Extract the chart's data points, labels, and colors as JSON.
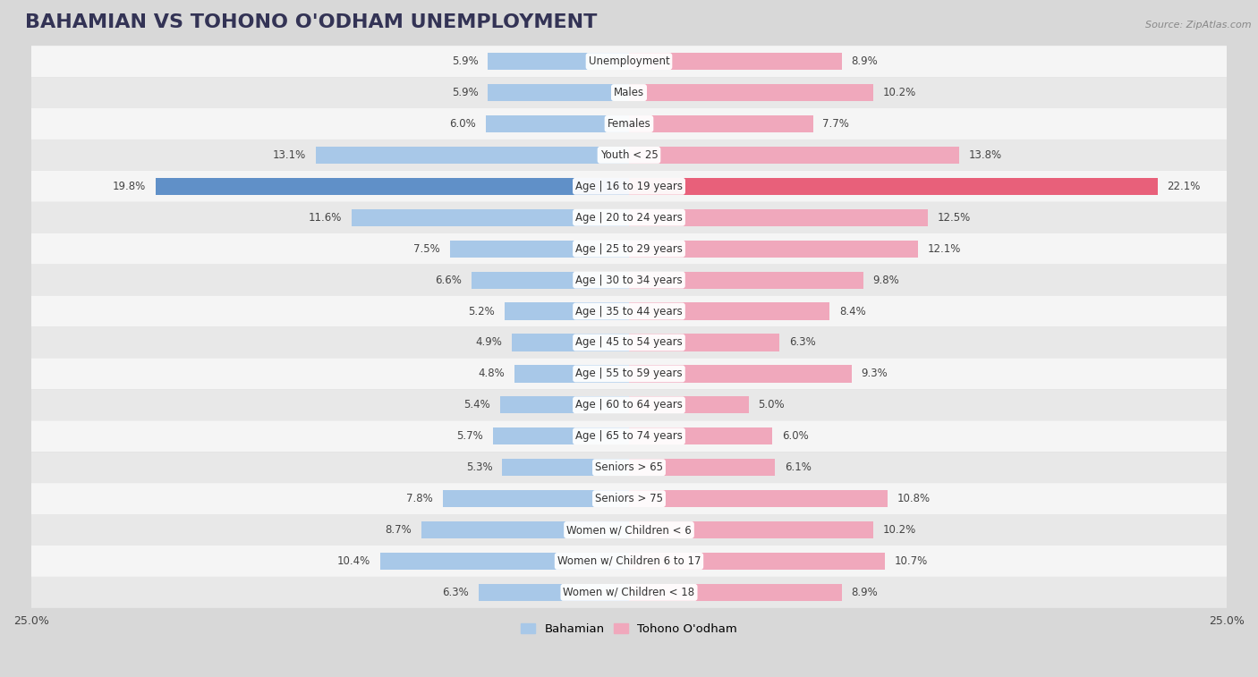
{
  "title": "BAHAMIAN VS TOHONO O'ODHAM UNEMPLOYMENT",
  "source": "Source: ZipAtlas.com",
  "categories": [
    "Unemployment",
    "Males",
    "Females",
    "Youth < 25",
    "Age | 16 to 19 years",
    "Age | 20 to 24 years",
    "Age | 25 to 29 years",
    "Age | 30 to 34 years",
    "Age | 35 to 44 years",
    "Age | 45 to 54 years",
    "Age | 55 to 59 years",
    "Age | 60 to 64 years",
    "Age | 65 to 74 years",
    "Seniors > 65",
    "Seniors > 75",
    "Women w/ Children < 6",
    "Women w/ Children 6 to 17",
    "Women w/ Children < 18"
  ],
  "bahamian": [
    5.9,
    5.9,
    6.0,
    13.1,
    19.8,
    11.6,
    7.5,
    6.6,
    5.2,
    4.9,
    4.8,
    5.4,
    5.7,
    5.3,
    7.8,
    8.7,
    10.4,
    6.3
  ],
  "tohono": [
    8.9,
    10.2,
    7.7,
    13.8,
    22.1,
    12.5,
    12.1,
    9.8,
    8.4,
    6.3,
    9.3,
    5.0,
    6.0,
    6.1,
    10.8,
    10.2,
    10.7,
    8.9
  ],
  "bahamian_color": "#a8c8e8",
  "tohono_color": "#f0a8bc",
  "highlight_bahamian_color": "#6090c8",
  "highlight_tohono_color": "#e8607a",
  "row_color_even": "#f5f5f5",
  "row_color_odd": "#e8e8e8",
  "background_color": "#d8d8d8",
  "xlim": 25.0,
  "legend_label_bahamian": "Bahamian",
  "legend_label_tohono": "Tohono O'odham",
  "title_fontsize": 16,
  "label_fontsize": 8.5,
  "value_fontsize": 8.5
}
